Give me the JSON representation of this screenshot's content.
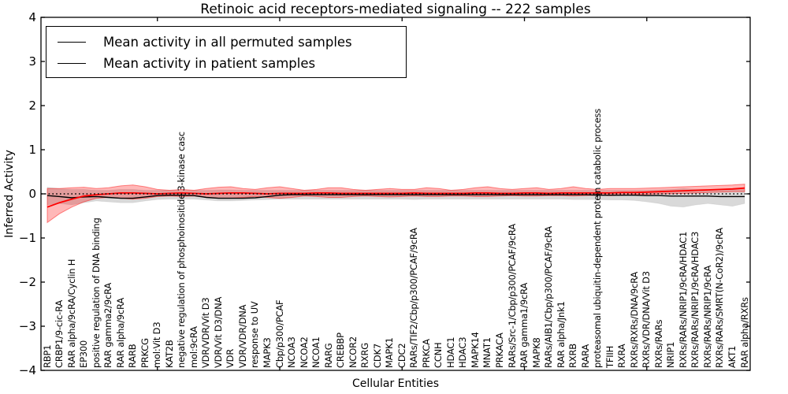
{
  "chart_data": {
    "type": "line",
    "title": "Retinoic acid receptors-mediated signaling -- 222 samples",
    "xlabel": "Cellular Entities",
    "ylabel": "Inferred Activity",
    "ylim": [
      -4,
      4
    ],
    "yticks": [
      4,
      3,
      2,
      1,
      0,
      -1,
      -2,
      -3,
      -4
    ],
    "grid": false,
    "legend_position": "upper left",
    "legend": [
      {
        "label": "Mean activity in all permuted samples",
        "color": "#000000"
      },
      {
        "label": "Mean activity in patient samples",
        "color": "#ff0000"
      }
    ],
    "colors": {
      "permuted_line": "#000000",
      "patient_line": "#ff0000",
      "permuted_band": "rgba(0,0,0,0.15)",
      "patient_band": "rgba(255,0,0,0.28)",
      "patient_band_edge": "rgba(255,0,0,0.45)",
      "zero_line": "#000000"
    },
    "categories": [
      "RBP1",
      "CRBP1/9-cic-RA",
      "RAR alpha/9cRA/Cyclin H",
      "EP300",
      "positive regulation of DNA binding",
      "RAR gamma2/9cRA",
      "RAR alpha/9cRA",
      "RARB",
      "PRKCG",
      "mol:Vit D3",
      "KAT2B",
      "negative regulation of phosphoinositide 3-kinase casc",
      "mol:9cRA",
      "VDR/VDR/Vit D3",
      "VDR/Vit D3/DNA",
      "VDR",
      "VDR/VDR/DNA",
      "response to UV",
      "MAPK3",
      "Cbp/p300/PCAF",
      "NCOA3",
      "NCOA2",
      "NCOA1",
      "RARG",
      "CREBBP",
      "NCOR2",
      "RXRG",
      "CDK7",
      "MAPK1",
      "CDC2",
      "RARs/TIF2/Cbp/p300/PCAF/9cRA",
      "PRKCA",
      "CCNH",
      "HDAC1",
      "HDAC3",
      "MAPK14",
      "MNAT1",
      "PRKACA",
      "RARs/Src-1/Cbp/p300/PCAF/9cRA",
      "RAR gamma1/9cRA",
      "MAPK8",
      "RARs/AIB1/Cbp/p300/PCAF/9cRA",
      "RAR alpha/Jnk1",
      "RXRB",
      "RARA",
      "proteasomal ubiquitin-dependent protein catabolic process",
      "TFIIH",
      "RXRA",
      "RXRs/RXRs/DNA/9cRA",
      "RXRs/VDR/DNA/Vit D3",
      "RXRs/RARs",
      "NRIP1",
      "RXRs/RARs/NRIP1/9cRA/HDAC1",
      "RXRs/RARs/NRIP1/9cRA/HDAC3",
      "RXRs/RARs/NRIP1/9cRA",
      "RXRs/RARs/SMRT(N-CoR2)/9cRA",
      "AKT1",
      "RAR alpha/RXRs"
    ],
    "series": [
      {
        "name": "Mean activity in all permuted samples",
        "values": [
          -0.04,
          -0.06,
          -0.09,
          -0.07,
          -0.06,
          -0.08,
          -0.1,
          -0.1,
          -0.07,
          -0.04,
          -0.03,
          -0.03,
          -0.04,
          -0.08,
          -0.1,
          -0.1,
          -0.1,
          -0.09,
          -0.06,
          -0.03,
          -0.02,
          -0.02,
          -0.02,
          -0.02,
          -0.02,
          -0.02,
          -0.02,
          -0.02,
          -0.02,
          -0.02,
          -0.02,
          -0.02,
          -0.02,
          -0.02,
          -0.02,
          -0.02,
          -0.02,
          -0.02,
          -0.02,
          -0.02,
          -0.02,
          -0.02,
          -0.02,
          -0.02,
          -0.02,
          -0.03,
          -0.03,
          -0.03,
          -0.03,
          -0.04,
          -0.04,
          -0.05,
          -0.05,
          -0.05,
          -0.05,
          -0.06,
          -0.06,
          -0.06
        ]
      },
      {
        "name": "Mean activity in patient samples",
        "values": [
          -0.3,
          -0.2,
          -0.12,
          -0.05,
          -0.02,
          0.0,
          0.02,
          0.02,
          0.01,
          0.0,
          0.01,
          0.02,
          0.01,
          0.0,
          0.01,
          0.02,
          0.02,
          0.01,
          0.0,
          0.01,
          0.01,
          0.01,
          0.02,
          0.02,
          0.01,
          0.01,
          0.01,
          0.01,
          0.01,
          0.01,
          0.02,
          0.01,
          0.01,
          0.01,
          0.01,
          0.02,
          0.02,
          0.01,
          0.01,
          0.02,
          0.02,
          0.01,
          0.02,
          0.02,
          0.02,
          0.02,
          0.02,
          0.03,
          0.03,
          0.04,
          0.05,
          0.06,
          0.07,
          0.08,
          0.09,
          0.1,
          0.11,
          0.13
        ]
      }
    ],
    "bands": {
      "permuted_upper": [
        0.15,
        0.12,
        0.1,
        0.1,
        0.08,
        0.08,
        0.1,
        0.1,
        0.08,
        0.08,
        0.08,
        0.08,
        0.08,
        0.08,
        0.09,
        0.09,
        0.08,
        0.08,
        0.08,
        0.08,
        0.08,
        0.08,
        0.08,
        0.08,
        0.08,
        0.08,
        0.08,
        0.08,
        0.08,
        0.08,
        0.08,
        0.08,
        0.08,
        0.08,
        0.08,
        0.08,
        0.08,
        0.08,
        0.08,
        0.08,
        0.08,
        0.08,
        0.08,
        0.08,
        0.08,
        0.08,
        0.08,
        0.08,
        0.08,
        0.08,
        0.09,
        0.1,
        0.12,
        0.1,
        0.1,
        0.1,
        0.1,
        0.1
      ],
      "permuted_lower": [
        -0.25,
        -0.22,
        -0.25,
        -0.2,
        -0.16,
        -0.18,
        -0.2,
        -0.2,
        -0.16,
        -0.13,
        -0.12,
        -0.12,
        -0.12,
        -0.14,
        -0.16,
        -0.16,
        -0.15,
        -0.14,
        -0.13,
        -0.12,
        -0.12,
        -0.12,
        -0.12,
        -0.12,
        -0.12,
        -0.12,
        -0.12,
        -0.12,
        -0.12,
        -0.12,
        -0.13,
        -0.12,
        -0.12,
        -0.12,
        -0.12,
        -0.12,
        -0.12,
        -0.12,
        -0.12,
        -0.12,
        -0.12,
        -0.12,
        -0.12,
        -0.13,
        -0.13,
        -0.13,
        -0.14,
        -0.14,
        -0.15,
        -0.18,
        -0.22,
        -0.28,
        -0.3,
        -0.25,
        -0.22,
        -0.25,
        -0.28,
        -0.22
      ],
      "patient_upper": [
        0.12,
        0.12,
        0.14,
        0.15,
        0.12,
        0.14,
        0.18,
        0.2,
        0.16,
        0.1,
        0.08,
        0.1,
        0.08,
        0.12,
        0.15,
        0.16,
        0.12,
        0.1,
        0.14,
        0.16,
        0.12,
        0.08,
        0.1,
        0.14,
        0.14,
        0.1,
        0.08,
        0.1,
        0.12,
        0.1,
        0.1,
        0.14,
        0.12,
        0.08,
        0.1,
        0.14,
        0.16,
        0.12,
        0.1,
        0.12,
        0.14,
        0.1,
        0.12,
        0.16,
        0.12,
        0.1,
        0.12,
        0.12,
        0.12,
        0.13,
        0.14,
        0.15,
        0.16,
        0.17,
        0.18,
        0.19,
        0.2,
        0.22
      ],
      "patient_lower": [
        -0.65,
        -0.45,
        -0.3,
        -0.18,
        -0.1,
        -0.08,
        -0.1,
        -0.12,
        -0.1,
        -0.06,
        -0.05,
        -0.06,
        -0.05,
        -0.08,
        -0.1,
        -0.1,
        -0.08,
        -0.06,
        -0.08,
        -0.1,
        -0.08,
        -0.05,
        -0.06,
        -0.08,
        -0.08,
        -0.06,
        -0.05,
        -0.06,
        -0.07,
        -0.06,
        -0.05,
        -0.06,
        -0.06,
        -0.05,
        -0.05,
        -0.06,
        -0.06,
        -0.05,
        -0.04,
        -0.05,
        -0.05,
        -0.04,
        -0.04,
        -0.05,
        -0.04,
        -0.03,
        -0.04,
        -0.03,
        -0.02,
        -0.01,
        0.0,
        0.0,
        0.01,
        0.02,
        0.03,
        0.04,
        0.05,
        0.05
      ]
    },
    "zero_reference_line": 0
  }
}
